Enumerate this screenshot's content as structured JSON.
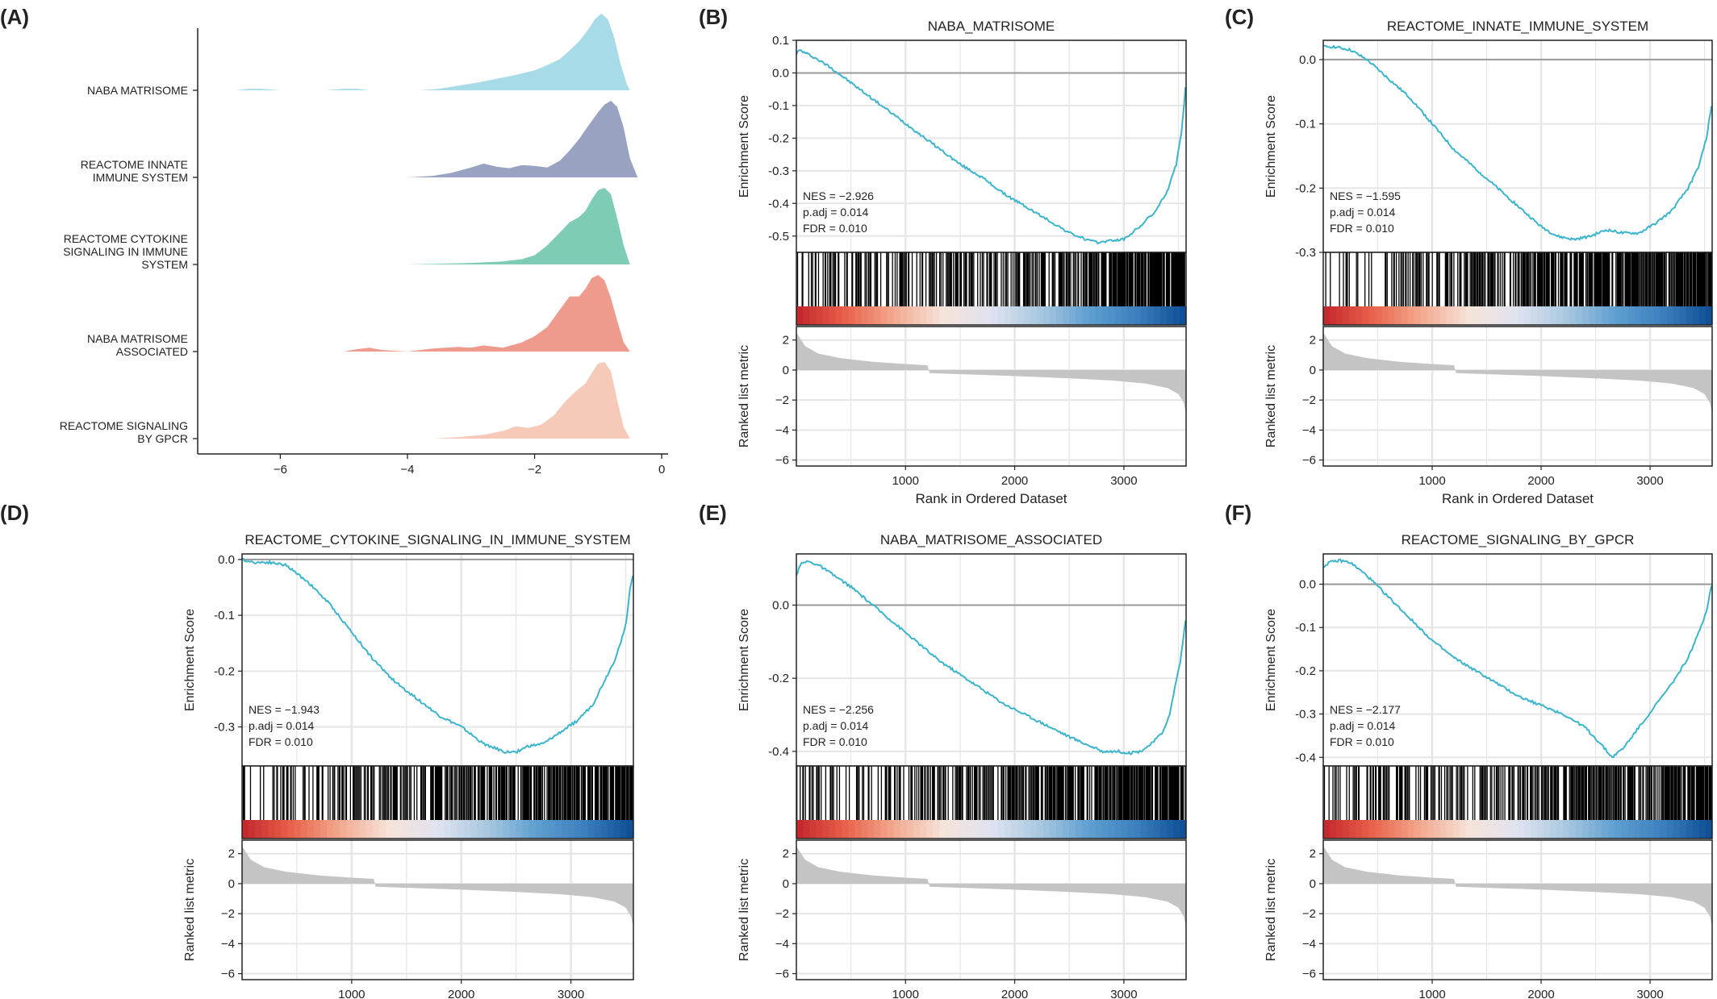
{
  "panel_labels": [
    "(A)",
    "(B)",
    "(C)",
    "(D)",
    "(E)",
    "(F)"
  ],
  "colors": {
    "curve": "#3cb4cc",
    "zero_line": "#9a9a9a",
    "grid": "#e6e6e6",
    "ranked_fill": "#c4c4c4",
    "ridge_fills": [
      "#a6dbe7",
      "#9aa2c1",
      "#7ecbb6",
      "#ee9a8d",
      "#f6c9b9"
    ],
    "heat_gradient": [
      "#c3252c",
      "#e8614a",
      "#f3a98f",
      "#f6e3da",
      "#dfe3ef",
      "#a9c8e0",
      "#5f9fd0",
      "#3b7fbd",
      "#0d4d94"
    ]
  },
  "chart_data": [
    {
      "panel": "(A)",
      "type": "area",
      "subtype": "ridgeline",
      "categories": [
        [
          "NABA MATRISOME"
        ],
        [
          "REACTOME INNATE",
          "IMMUNE SYSTEM"
        ],
        [
          "REACTOME CYTOKINE",
          "SIGNALING IN IMMUNE",
          "SYSTEM"
        ],
        [
          "NABA MATRISOME",
          "ASSOCIATED"
        ],
        [
          "REACTOME SIGNALING",
          "BY GPCR"
        ]
      ],
      "xlim": [
        -7.3,
        0.1
      ],
      "xticks": [
        -6,
        -4,
        -2,
        0
      ],
      "x_tick_labels": [
        "−6",
        "−4",
        "−2",
        "0"
      ],
      "series": [
        {
          "x": [
            -7.0,
            -6.7,
            -6.5,
            -6.3,
            -6.0,
            -5.3,
            -5.0,
            -4.8,
            -4.6,
            -4.2,
            -3.8,
            -3.5,
            -3.2,
            -2.9,
            -2.6,
            -2.3,
            -2.0,
            -1.8,
            -1.6,
            -1.45,
            -1.3,
            -1.15,
            -1.05,
            -0.95,
            -0.85,
            -0.75,
            -0.65,
            -0.55,
            -0.5
          ],
          "y": [
            0,
            0,
            0.02,
            0.02,
            0,
            0,
            0.02,
            0.02,
            0,
            0,
            0,
            0.02,
            0.06,
            0.1,
            0.15,
            0.2,
            0.26,
            0.33,
            0.41,
            0.52,
            0.64,
            0.8,
            0.93,
            1.0,
            0.93,
            0.7,
            0.35,
            0.08,
            0
          ]
        },
        {
          "x": [
            -4.0,
            -3.6,
            -3.3,
            -3.0,
            -2.8,
            -2.6,
            -2.4,
            -2.2,
            -2.0,
            -1.8,
            -1.6,
            -1.45,
            -1.3,
            -1.15,
            -1.0,
            -0.9,
            -0.8,
            -0.7,
            -0.6,
            -0.5,
            -0.38
          ],
          "y": [
            0,
            0.02,
            0.06,
            0.13,
            0.18,
            0.14,
            0.12,
            0.16,
            0.15,
            0.13,
            0.22,
            0.35,
            0.5,
            0.68,
            0.85,
            0.95,
            1.0,
            0.92,
            0.65,
            0.25,
            0
          ]
        },
        {
          "x": [
            -4.0,
            -3.5,
            -3.0,
            -2.5,
            -2.2,
            -2.0,
            -1.8,
            -1.6,
            -1.45,
            -1.3,
            -1.2,
            -1.1,
            -1.0,
            -0.9,
            -0.8,
            -0.7,
            -0.6,
            -0.5
          ],
          "y": [
            0,
            0.01,
            0.02,
            0.04,
            0.07,
            0.12,
            0.25,
            0.42,
            0.55,
            0.62,
            0.7,
            0.85,
            0.97,
            1.0,
            0.92,
            0.6,
            0.25,
            0
          ]
        },
        {
          "x": [
            -5.0,
            -4.8,
            -4.6,
            -4.4,
            -4.0,
            -3.6,
            -3.2,
            -3.0,
            -2.8,
            -2.5,
            -2.2,
            -2.0,
            -1.8,
            -1.6,
            -1.45,
            -1.3,
            -1.2,
            -1.1,
            -1.0,
            -0.9,
            -0.8,
            -0.7,
            -0.6,
            -0.5
          ],
          "y": [
            0,
            0.03,
            0.05,
            0.02,
            0,
            0.04,
            0.06,
            0.05,
            0.08,
            0.05,
            0.12,
            0.2,
            0.32,
            0.55,
            0.72,
            0.72,
            0.82,
            0.96,
            1.0,
            0.93,
            0.7,
            0.4,
            0.12,
            0
          ]
        },
        {
          "x": [
            -3.6,
            -3.2,
            -2.8,
            -2.5,
            -2.3,
            -2.1,
            -1.9,
            -1.7,
            -1.5,
            -1.35,
            -1.2,
            -1.1,
            -1.0,
            -0.9,
            -0.8,
            -0.7,
            -0.6,
            -0.5
          ],
          "y": [
            0,
            0.02,
            0.05,
            0.1,
            0.16,
            0.14,
            0.18,
            0.3,
            0.5,
            0.62,
            0.72,
            0.86,
            0.98,
            1.0,
            0.88,
            0.5,
            0.15,
            0
          ]
        }
      ]
    },
    {
      "panel": "(B)",
      "type": "line",
      "title": "NABA_MATRISOME",
      "ylabel": "Enrichment Score",
      "ylim": [
        -0.55,
        0.1
      ],
      "yticks": [
        0.1,
        0.0,
        -0.1,
        -0.2,
        -0.3,
        -0.4,
        -0.5
      ],
      "y_tick_labels": [
        "0.1",
        "0.0",
        "-0.1",
        "-0.2",
        "-0.3",
        "-0.4",
        "-0.5"
      ],
      "stats": [
        "NES = −2.926",
        "p.adj = 0.014",
        "FDR = 0.010"
      ],
      "x": [
        0,
        30,
        150,
        300,
        500,
        700,
        900,
        1100,
        1300,
        1500,
        1700,
        1900,
        2100,
        2300,
        2500,
        2650,
        2750,
        2850,
        3000,
        3150,
        3300,
        3400,
        3480,
        3530,
        3565
      ],
      "y": [
        0.06,
        0.07,
        0.05,
        0.02,
        -0.03,
        -0.08,
        -0.13,
        -0.18,
        -0.23,
        -0.28,
        -0.32,
        -0.37,
        -0.41,
        -0.45,
        -0.49,
        -0.51,
        -0.52,
        -0.515,
        -0.51,
        -0.47,
        -0.42,
        -0.36,
        -0.28,
        -0.18,
        -0.04
      ]
    },
    {
      "panel": "(C)",
      "type": "line",
      "title": "REACTOME_INNATE_IMMUNE_SYSTEM",
      "ylabel": "Enrichment Score",
      "ylim": [
        -0.3,
        0.03
      ],
      "yticks": [
        0.0,
        -0.1,
        -0.2,
        -0.3
      ],
      "y_tick_labels": [
        "0.0",
        "-0.1",
        "-0.2",
        "-0.3"
      ],
      "stats": [
        "NES = −1.595",
        "p.adj = 0.014",
        "FDR = 0.010"
      ],
      "x": [
        0,
        100,
        250,
        400,
        600,
        800,
        1000,
        1200,
        1400,
        1600,
        1800,
        2000,
        2150,
        2300,
        2450,
        2600,
        2750,
        2900,
        3050,
        3200,
        3350,
        3450,
        3520,
        3565
      ],
      "y": [
        0.02,
        0.02,
        0.015,
        0.0,
        -0.03,
        -0.06,
        -0.1,
        -0.14,
        -0.17,
        -0.2,
        -0.23,
        -0.26,
        -0.275,
        -0.28,
        -0.275,
        -0.265,
        -0.27,
        -0.27,
        -0.255,
        -0.235,
        -0.2,
        -0.165,
        -0.12,
        -0.07
      ]
    },
    {
      "panel": "(D)",
      "type": "line",
      "title": "REACTOME_CYTOKINE_SIGNALING_IN_IMMUNE_SYSTEM",
      "ylabel": "Enrichment Score",
      "ylim": [
        -0.37,
        0.01
      ],
      "yticks": [
        0.0,
        -0.1,
        -0.2,
        -0.3
      ],
      "y_tick_labels": [
        "0.0",
        "-0.1",
        "-0.2",
        "-0.3"
      ],
      "stats": [
        "NES = −1.943",
        "p.adj = 0.014",
        "FDR = 0.010"
      ],
      "x": [
        0,
        100,
        250,
        400,
        600,
        800,
        1000,
        1200,
        1400,
        1600,
        1800,
        2000,
        2200,
        2400,
        2500,
        2600,
        2750,
        2900,
        3050,
        3200,
        3300,
        3400,
        3450,
        3500,
        3540,
        3565
      ],
      "y": [
        0.0,
        -0.005,
        -0.005,
        -0.01,
        -0.04,
        -0.08,
        -0.13,
        -0.18,
        -0.22,
        -0.25,
        -0.28,
        -0.3,
        -0.33,
        -0.345,
        -0.345,
        -0.335,
        -0.33,
        -0.31,
        -0.29,
        -0.26,
        -0.22,
        -0.18,
        -0.15,
        -0.12,
        -0.05,
        -0.03
      ]
    },
    {
      "panel": "(E)",
      "type": "line",
      "title": "NABA_MATRISOME_ASSOCIATED",
      "ylabel": "Enrichment Score",
      "ylim": [
        -0.44,
        0.14
      ],
      "yticks": [
        0.0,
        -0.2,
        -0.4
      ],
      "y_tick_labels": [
        "0.0",
        "-0.2",
        "-0.4"
      ],
      "stats": [
        "NES = −2.256",
        "p.adj = 0.014",
        "FDR = 0.010"
      ],
      "x": [
        0,
        30,
        100,
        200,
        350,
        500,
        700,
        900,
        1100,
        1300,
        1500,
        1700,
        1900,
        2100,
        2300,
        2500,
        2650,
        2800,
        2950,
        3050,
        3150,
        3250,
        3350,
        3420,
        3470,
        3520,
        3565
      ],
      "y": [
        0.08,
        0.11,
        0.12,
        0.11,
        0.08,
        0.05,
        0.0,
        -0.05,
        -0.1,
        -0.15,
        -0.19,
        -0.23,
        -0.27,
        -0.3,
        -0.33,
        -0.36,
        -0.38,
        -0.4,
        -0.4,
        -0.405,
        -0.4,
        -0.38,
        -0.35,
        -0.3,
        -0.22,
        -0.15,
        -0.04
      ]
    },
    {
      "panel": "(F)",
      "type": "line",
      "title": "REACTOME_SIGNALING_BY_GPCR",
      "ylabel": "Enrichment Score",
      "ylim": [
        -0.42,
        0.07
      ],
      "yticks": [
        0.0,
        -0.1,
        -0.2,
        -0.3,
        -0.4
      ],
      "y_tick_labels": [
        "0.0",
        "-0.1",
        "-0.2",
        "-0.3",
        "-0.4"
      ],
      "stats": [
        "NES = −2.177",
        "p.adj = 0.014",
        "FDR = 0.010"
      ],
      "x": [
        0,
        50,
        150,
        250,
        400,
        600,
        800,
        1000,
        1200,
        1400,
        1600,
        1800,
        2000,
        2200,
        2400,
        2550,
        2650,
        2750,
        2900,
        3050,
        3200,
        3350,
        3450,
        3520,
        3565
      ],
      "y": [
        0.04,
        0.05,
        0.055,
        0.05,
        0.02,
        -0.03,
        -0.08,
        -0.13,
        -0.17,
        -0.2,
        -0.23,
        -0.26,
        -0.28,
        -0.3,
        -0.33,
        -0.37,
        -0.4,
        -0.38,
        -0.33,
        -0.28,
        -0.23,
        -0.17,
        -0.11,
        -0.06,
        0.0
      ]
    }
  ],
  "shared_axes": {
    "x_label": "Rank in Ordered Dataset",
    "xlim": [
      0,
      3570
    ],
    "xticks": [
      1000,
      2000,
      3000
    ],
    "x_tick_labels": [
      "1000",
      "2000",
      "3000"
    ],
    "ranked_ylabel": "Ranked list metric",
    "ranked_ylim": [
      -6.4,
      2.9
    ],
    "ranked_yticks": [
      2,
      0,
      -2,
      -4,
      -6
    ],
    "ranked_y_tick_labels": [
      "2",
      "0",
      "−2",
      "−4",
      "−6"
    ],
    "ranked_metric": {
      "x": [
        0,
        80,
        200,
        400,
        700,
        1000,
        1200,
        1220,
        1600,
        2000,
        2500,
        2900,
        3200,
        3400,
        3500,
        3550,
        3570
      ],
      "y": [
        2.5,
        1.6,
        1.1,
        0.8,
        0.55,
        0.4,
        0.32,
        -0.2,
        -0.3,
        -0.4,
        -0.55,
        -0.7,
        -0.9,
        -1.2,
        -1.6,
        -2.2,
        -2.9
      ]
    }
  }
}
